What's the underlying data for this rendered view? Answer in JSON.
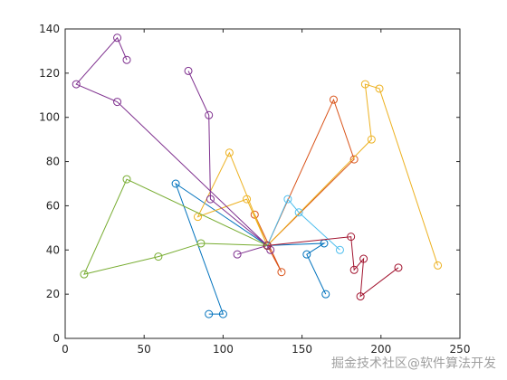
{
  "chart_data": {
    "type": "line",
    "xlim": [
      0,
      250
    ],
    "xticks": [
      0,
      50,
      100,
      150,
      200,
      250
    ],
    "ylim": [
      0,
      140
    ],
    "yticks": [
      0,
      20,
      40,
      60,
      80,
      100,
      120,
      140
    ],
    "marker": "circle",
    "series": [
      {
        "color": "#0072BD",
        "x": [
          128,
          70,
          100,
          91
        ],
        "y": [
          42,
          70,
          11,
          11
        ]
      },
      {
        "color": "#0072BD",
        "x": [
          128,
          164,
          153,
          165
        ],
        "y": [
          42,
          43,
          38,
          20
        ]
      },
      {
        "color": "#D95319",
        "x": [
          120,
          137,
          128,
          170,
          183,
          128
        ],
        "y": [
          56,
          30,
          42,
          108,
          81,
          42
        ]
      },
      {
        "color": "#EDB120",
        "x": [
          128,
          104,
          84,
          115,
          128
        ],
        "y": [
          42,
          84,
          55,
          63,
          42
        ]
      },
      {
        "color": "#EDB120",
        "x": [
          128,
          194,
          190,
          199,
          236
        ],
        "y": [
          42,
          90,
          115,
          113,
          33
        ]
      },
      {
        "color": "#7E2F8E",
        "x": [
          128,
          33,
          7,
          33,
          39
        ],
        "y": [
          42,
          107,
          115,
          136,
          126
        ]
      },
      {
        "color": "#7E2F8E",
        "x": [
          78,
          91,
          92,
          128,
          109
        ],
        "y": [
          121,
          101,
          63,
          42,
          38
        ]
      },
      {
        "color": "#7E2F8E",
        "x": [
          128,
          130
        ],
        "y": [
          42,
          40
        ]
      },
      {
        "color": "#77AC30",
        "x": [
          128,
          39,
          12,
          59,
          86,
          128
        ],
        "y": [
          42,
          72,
          29,
          37,
          43,
          42
        ]
      },
      {
        "color": "#4DBEEE",
        "x": [
          128,
          141,
          148,
          174
        ],
        "y": [
          42,
          63,
          57,
          40
        ]
      },
      {
        "color": "#A2142F",
        "x": [
          128,
          181,
          183,
          189,
          187,
          211
        ],
        "y": [
          42,
          46,
          31,
          36,
          19,
          32
        ]
      }
    ]
  },
  "watermark": "掘金技术社区@软件算法开发"
}
